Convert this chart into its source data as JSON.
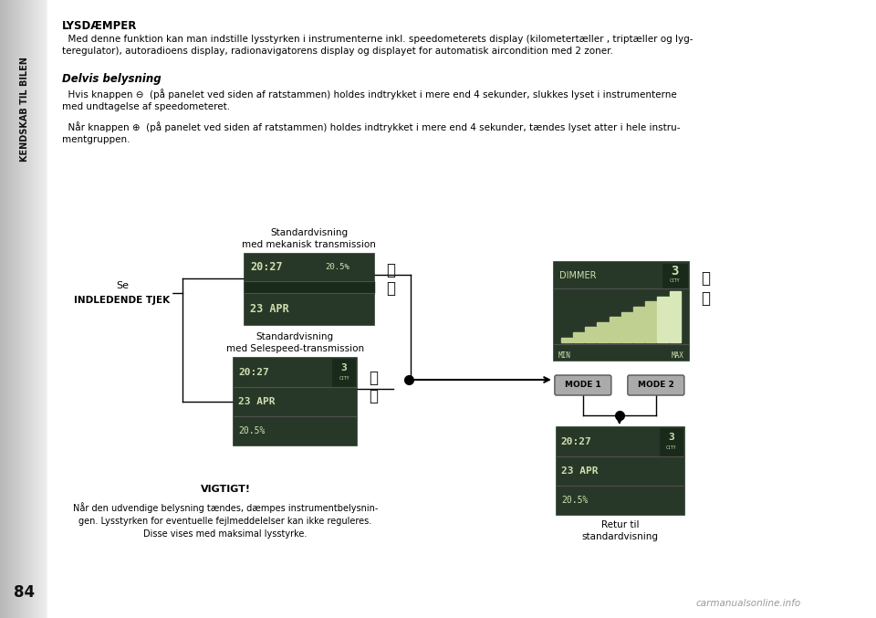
{
  "page_bg": "#f0f0f0",
  "sidebar_bg": "#c8c8c8",
  "sidebar_text": "KENDSKAB TIL BILEN",
  "page_number": "84",
  "title": "LYSDÆMPER",
  "para1": "  Med denne funktion kan man indstille lysstyrken i instrumenterne inkl. speedometerets display (kilometertæller , triptæller og lyg-\nteregulator), autoradioens display, radionavigatorens display og displayet for automatisk aircondition med 2 zoner.",
  "subtitle": "Delvis belysning",
  "para2": "  Hvis knappen ⊖  (på panelet ved siden af ratstammen) holdes indtrykket i mere end 4 sekunder, slukkes lyset i instrumenterne\nmed undtagelse af speedometeret.",
  "para3": "  Når knappen ⊕  (på panelet ved siden af ratstammen) holdes indtrykket i mere end 4 sekunder, tændes lyset atter i hele instru-\nmentgruppen.",
  "label_std_mek": "Standardvisning\nmed mekanisk transmission",
  "label_std_sel": "Standardvisning\nmed Selespeed-transmission",
  "label_se_line1": "Se",
  "label_se_line2": "INDLEDENDE TJEK",
  "label_retur": "Retur til\nstandardvisning",
  "label_vigtigt_title": "VIGTIGT!",
  "label_vigtigt_text": "Når den udvendige belysning tændes, dæmpes instrumentbelysnin-\ngen. Lysstyrken for eventuelle fejlmeddelelser kan ikke reguleres.\nDisse vises med maksimal lysstyrke.",
  "display_bg": "#283828",
  "display_border": "#777777",
  "display_text_color": "#d0e0b0",
  "display_sep_color": "#505050",
  "dimmer_bg": "#283828",
  "bar_color_light": "#c0d090",
  "bar_color_last": "#e8e8d0",
  "mode_btn_bg": "#aaaaaa",
  "mode_btn_border": "#555555",
  "watermark": "carmanualsonline.info",
  "plus_minus_color": "#111111"
}
